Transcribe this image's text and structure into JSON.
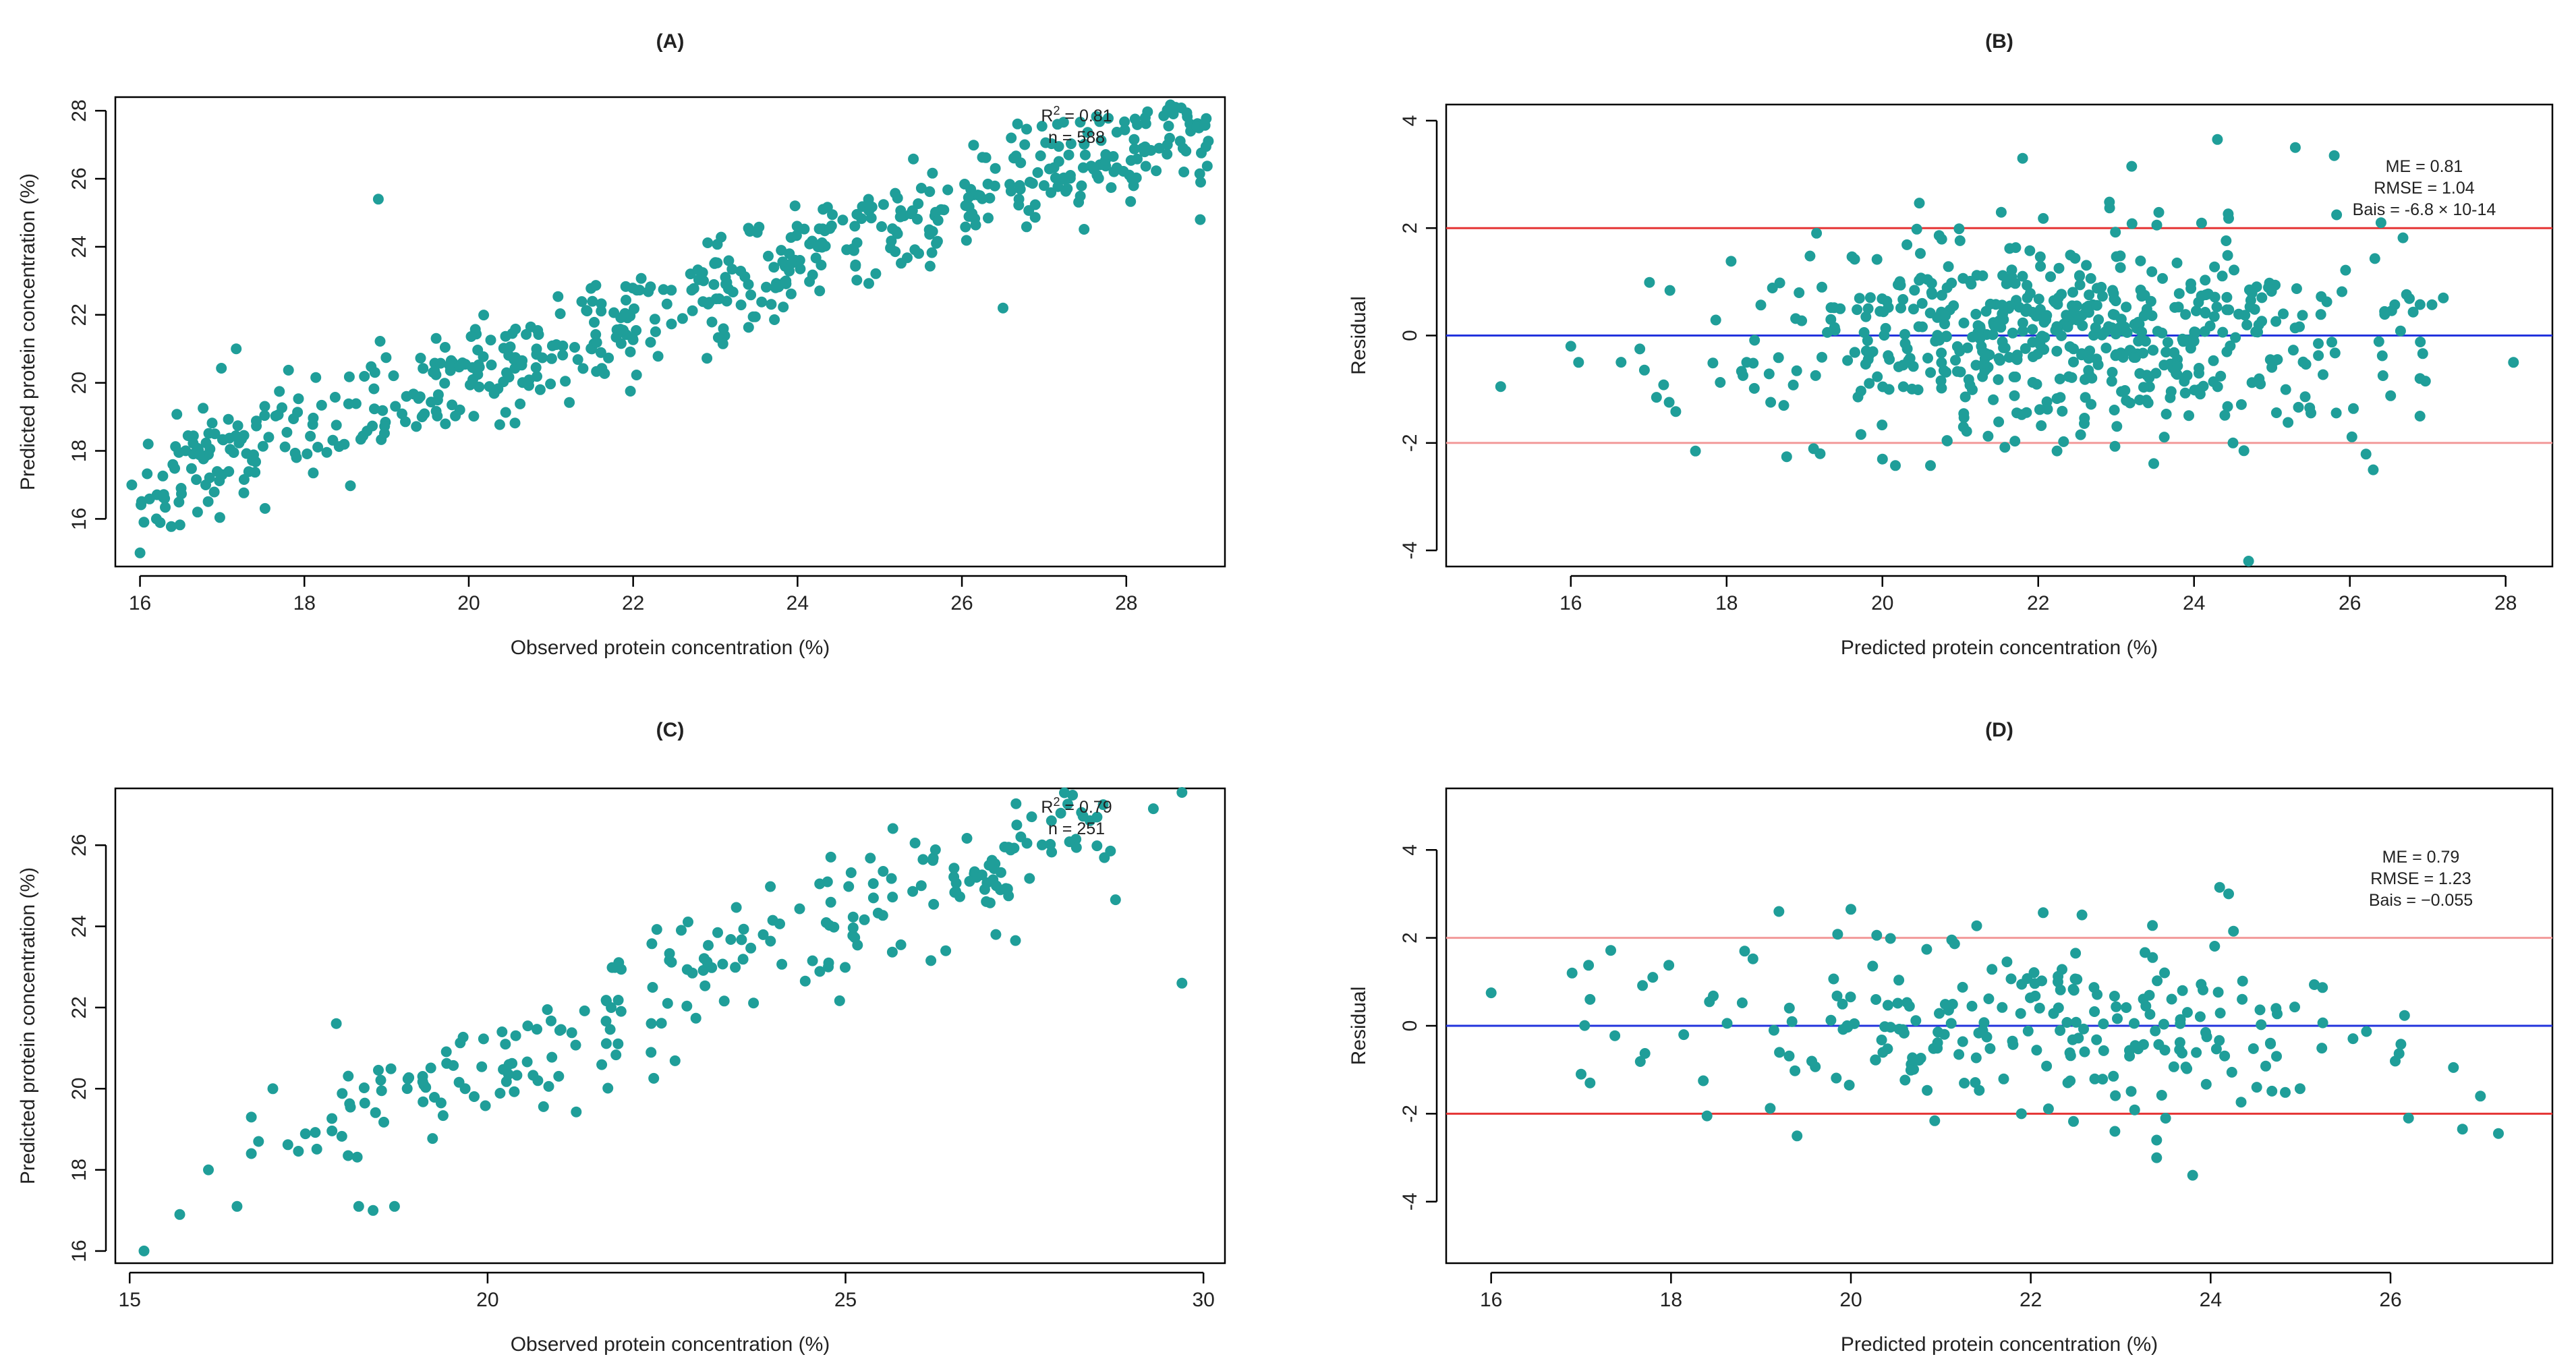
{
  "colors": {
    "point": "#1f9e99",
    "zero_line": "#2233dd",
    "limit_line": "#e53535",
    "limit_line_light": "#f29a9a",
    "axis": "#000000"
  },
  "chart_data": [
    {
      "id": "A",
      "type": "scatter",
      "title": "(A)",
      "xlabel": "Observed protein concentration (%)",
      "ylabel": "Predicted protein concentration (%)",
      "xlim": [
        15.7,
        29.2
      ],
      "ylim": [
        14.6,
        28.4
      ],
      "xticks": [
        16,
        18,
        20,
        22,
        24,
        26,
        28
      ],
      "yticks": [
        16,
        18,
        20,
        22,
        24,
        26,
        28
      ],
      "xtick_labels": [
        "16",
        "18",
        "20",
        "22",
        "24",
        "26",
        "28"
      ],
      "ytick_labels": [
        "16",
        "18",
        "20",
        "22",
        "24",
        "26",
        "28"
      ],
      "annotations": [
        {
          "prefix": "R",
          "superscript": "2",
          "text": " = 0.81"
        },
        {
          "prefix": "",
          "superscript": "",
          "text": "n = 588"
        }
      ],
      "n_points": 588,
      "generator": {
        "seed": 11,
        "n": 588,
        "xmin": 16.0,
        "xmax": 29.0,
        "slope": 0.82,
        "intercept": 3.9,
        "noise": 1.0
      },
      "points": [
        [
          15.9,
          17.0
        ],
        [
          16.0,
          15.0
        ],
        [
          16.1,
          18.2
        ],
        [
          16.2,
          16.0
        ],
        [
          16.3,
          16.6
        ],
        [
          16.4,
          17.6
        ],
        [
          16.5,
          16.9
        ],
        [
          16.7,
          16.2
        ],
        [
          16.8,
          17.0
        ],
        [
          17.0,
          17.3
        ],
        [
          18.9,
          25.4
        ],
        [
          26.5,
          22.2
        ],
        [
          28.6,
          28.1
        ],
        [
          28.9,
          24.8
        ],
        [
          28.7,
          26.2
        ],
        [
          28.5,
          27.0
        ],
        [
          27.3,
          26.7
        ],
        [
          27.0,
          25.8
        ],
        [
          26.6,
          27.2
        ],
        [
          28.2,
          26.9
        ],
        [
          28.4,
          26.9
        ],
        [
          27.5,
          26.7
        ]
      ]
    },
    {
      "id": "B",
      "type": "scatter",
      "title": "(B)",
      "xlabel": "Predicted protein concentration (%)",
      "ylabel": "Residual",
      "xlim": [
        14.4,
        28.6
      ],
      "ylim": [
        -4.3,
        4.3
      ],
      "xticks": [
        16,
        18,
        20,
        22,
        24,
        26,
        28
      ],
      "yticks": [
        -4,
        -2,
        0,
        2,
        4
      ],
      "xtick_labels": [
        "16",
        "18",
        "20",
        "22",
        "24",
        "26",
        "28"
      ],
      "ytick_labels": [
        "-4",
        "-2",
        "0",
        "2",
        "4"
      ],
      "reference_lines": {
        "zero": 0,
        "upper": 2,
        "lower": -2
      },
      "annotations": [
        {
          "prefix": "",
          "superscript": "",
          "text": "ME = 0.81"
        },
        {
          "prefix": "",
          "superscript": "",
          "text": "RMSE = 1.04"
        },
        {
          "prefix": "",
          "superscript": "",
          "text": "Bais = -6.8 × 10-14"
        }
      ],
      "n_points": 588,
      "generator": {
        "seed": 23,
        "n": 588,
        "xmin": 16.6,
        "xmax": 27.2,
        "center": 22.3,
        "spread": 2.0,
        "noise": 0.95
      },
      "points": [
        [
          15.1,
          -0.95
        ],
        [
          16.0,
          -0.2
        ],
        [
          16.1,
          -0.5
        ],
        [
          17.1,
          -1.15
        ],
        [
          17.6,
          -2.15
        ],
        [
          24.3,
          3.65
        ],
        [
          25.3,
          3.5
        ],
        [
          25.8,
          3.35
        ],
        [
          21.8,
          3.3
        ],
        [
          23.2,
          3.15
        ],
        [
          24.7,
          -4.2
        ],
        [
          26.4,
          2.1
        ],
        [
          26.3,
          -2.5
        ],
        [
          26.9,
          -1.5
        ],
        [
          28.1,
          -0.5
        ],
        [
          27.2,
          0.7
        ],
        [
          26.9,
          -0.8
        ],
        [
          20.0,
          -2.3
        ],
        [
          19.2,
          -2.2
        ],
        [
          24.5,
          -2.0
        ]
      ]
    },
    {
      "id": "C",
      "type": "scatter",
      "title": "(C)",
      "xlabel": "Observed protein concentration (%)",
      "ylabel": "Predicted protein concentration (%)",
      "xlim": [
        14.8,
        30.3
      ],
      "ylim": [
        15.7,
        27.4
      ],
      "xticks": [
        15,
        20,
        25,
        30
      ],
      "yticks": [
        16,
        18,
        20,
        22,
        24,
        26
      ],
      "xtick_labels": [
        "15",
        "20",
        "25",
        "30"
      ],
      "ytick_labels": [
        "16",
        "18",
        "20",
        "22",
        "24",
        "26"
      ],
      "annotations": [
        {
          "prefix": "R",
          "superscript": "2",
          "text": " = 0.79"
        },
        {
          "prefix": "",
          "superscript": "",
          "text": "n = 251"
        }
      ],
      "n_points": 251,
      "generator": {
        "seed": 37,
        "n": 251,
        "xmin": 17.0,
        "xmax": 28.8,
        "slope": 0.68,
        "intercept": 7.0,
        "noise": 0.95
      },
      "points": [
        [
          15.2,
          16.0
        ],
        [
          15.7,
          16.9
        ],
        [
          16.1,
          18.0
        ],
        [
          16.5,
          17.1
        ],
        [
          16.7,
          18.4
        ],
        [
          16.7,
          19.3
        ],
        [
          29.7,
          27.3
        ],
        [
          29.7,
          22.6
        ],
        [
          28.6,
          27.0
        ],
        [
          29.3,
          26.9
        ],
        [
          27.6,
          26.7
        ],
        [
          27.1,
          23.8
        ],
        [
          26.4,
          23.4
        ],
        [
          17.0,
          20.0
        ],
        [
          16.8,
          18.7
        ],
        [
          18.2,
          17.1
        ],
        [
          18.4,
          17.0
        ],
        [
          18.7,
          17.1
        ]
      ]
    },
    {
      "id": "D",
      "type": "scatter",
      "title": "(D)",
      "xlabel": "Predicted protein concentration (%)",
      "ylabel": "Residual",
      "xlim": [
        15.5,
        27.8
      ],
      "ylim": [
        -5.4,
        5.4
      ],
      "xticks": [
        16,
        18,
        20,
        22,
        24,
        26
      ],
      "yticks": [
        -4,
        -2,
        0,
        2,
        4
      ],
      "xtick_labels": [
        "16",
        "18",
        "20",
        "22",
        "24",
        "26"
      ],
      "ytick_labels": [
        "-4",
        "-2",
        "0",
        "2",
        "4"
      ],
      "reference_lines": {
        "zero": 0,
        "upper": 2,
        "lower": -2
      },
      "annotations": [
        {
          "prefix": "",
          "superscript": "",
          "text": "ME = 0.79"
        },
        {
          "prefix": "",
          "superscript": "",
          "text": "RMSE = 1.23"
        },
        {
          "prefix": "",
          "superscript": "",
          "text": "Bais = −0.055"
        }
      ],
      "n_points": 251,
      "generator": {
        "seed": 53,
        "n": 251,
        "xmin": 17.0,
        "xmax": 26.2,
        "center": 22.0,
        "spread": 2.0,
        "noise": 1.05
      },
      "points": [
        [
          16.0,
          0.75
        ],
        [
          16.9,
          1.2
        ],
        [
          17.0,
          -1.1
        ],
        [
          17.1,
          -1.3
        ],
        [
          17.1,
          0.6
        ],
        [
          19.2,
          2.6
        ],
        [
          20.0,
          2.65
        ],
        [
          24.1,
          3.15
        ],
        [
          24.2,
          3.0
        ],
        [
          23.4,
          -2.6
        ],
        [
          23.4,
          -3.0
        ],
        [
          23.8,
          -3.4
        ],
        [
          26.8,
          -2.35
        ],
        [
          27.2,
          -2.45
        ],
        [
          27.0,
          -1.6
        ],
        [
          26.7,
          -0.95
        ],
        [
          26.2,
          -2.1
        ],
        [
          18.4,
          -2.05
        ]
      ]
    }
  ]
}
